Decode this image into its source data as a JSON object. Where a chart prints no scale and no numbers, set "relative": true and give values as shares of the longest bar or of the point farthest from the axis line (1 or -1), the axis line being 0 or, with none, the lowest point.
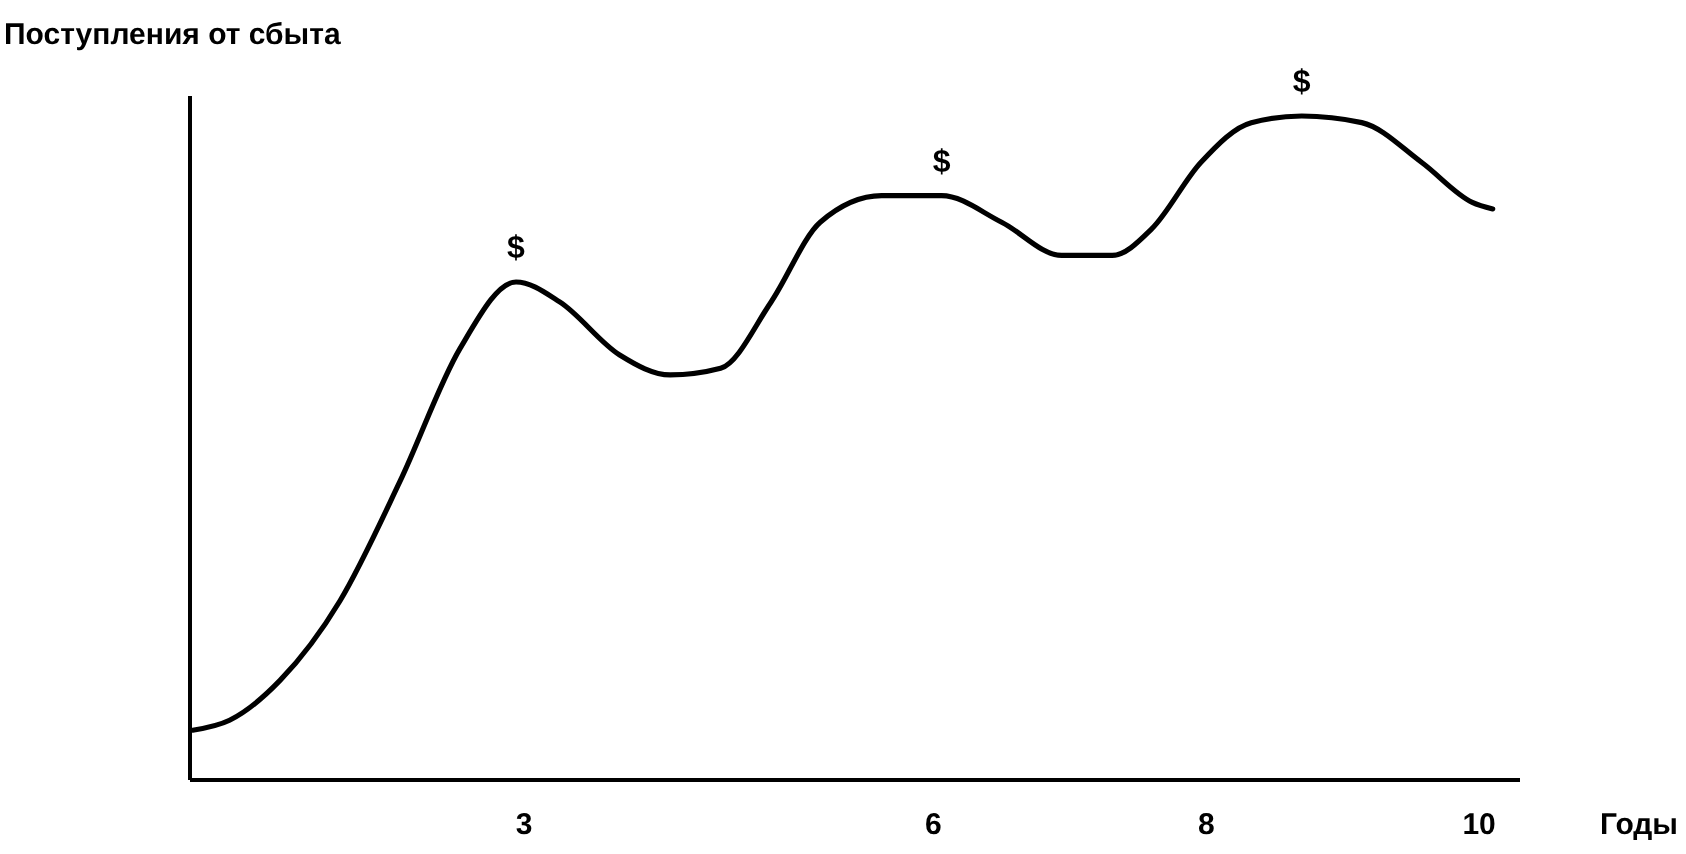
{
  "chart_data": {
    "type": "line",
    "relative": true,
    "ylabel": "Поступления от сбыта",
    "xlabel": "Годы",
    "x": [
      0.57,
      0.84,
      1.21,
      1.65,
      2.09,
      2.53,
      2.94,
      3.26,
      3.7,
      4.07,
      4.44,
      4.81,
      5.17,
      5.62,
      6.06,
      6.5,
      6.94,
      7.31,
      7.6,
      7.96,
      8.33,
      8.7,
      9.14,
      9.58,
      9.95,
      10.1
    ],
    "series": [
      {
        "color": "#000000",
        "values": [
          0.075,
          0.09,
          0.15,
          0.27,
          0.45,
          0.65,
          0.75,
          0.72,
          0.64,
          0.61,
          0.62,
          0.72,
          0.84,
          0.88,
          0.88,
          0.84,
          0.79,
          0.79,
          0.83,
          0.93,
          0.99,
          1.0,
          0.99,
          0.93,
          0.87,
          0.86
        ]
      }
    ],
    "xlim": [
      0.55,
      10.3
    ],
    "xticks": [
      3,
      6,
      8,
      10
    ],
    "grid": false,
    "marker": "none",
    "line_style": "solid",
    "annotations": [
      {
        "text": "$",
        "x": 2.94,
        "y": 0.75
      },
      {
        "text": "$",
        "x": 6.06,
        "y": 0.88
      },
      {
        "text": "$",
        "x": 8.7,
        "y": 1.0
      }
    ]
  }
}
